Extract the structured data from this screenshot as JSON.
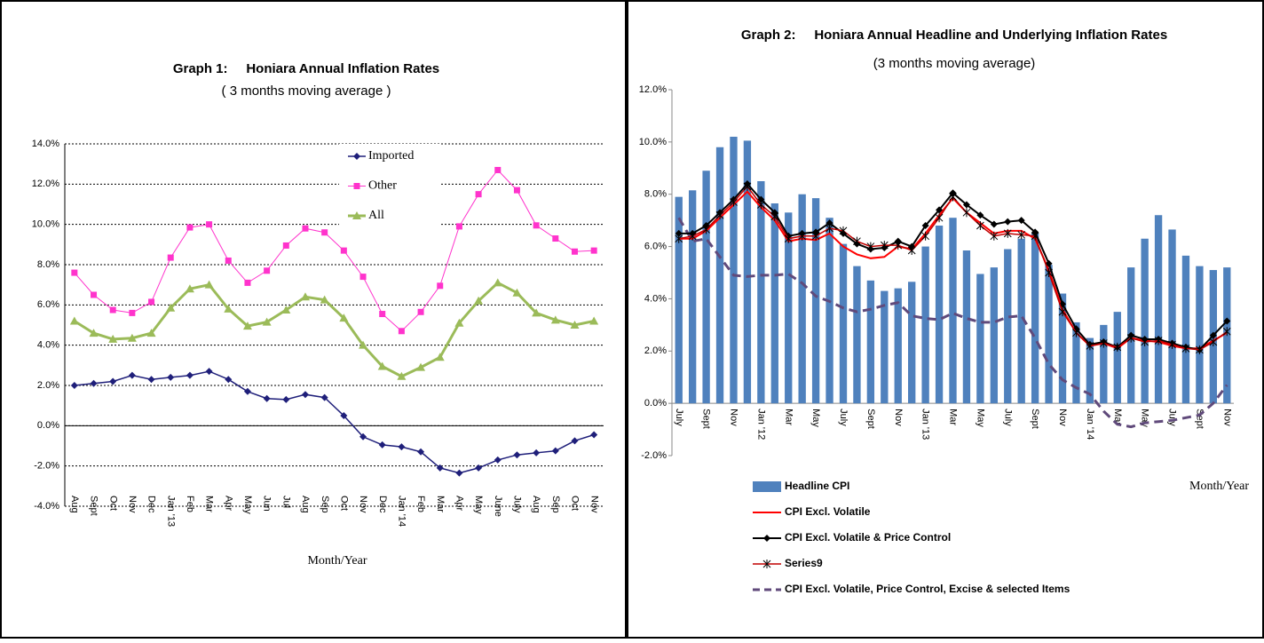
{
  "chart_data": [
    {
      "type": "line",
      "title": "Graph 1:     Honiara Annual Inflation Rates",
      "subtitle": "( 3 months moving average )",
      "x_label": "Month/Year",
      "legend": "top",
      "grid": true,
      "categories": [
        "Aug",
        "Sept",
        "Oct",
        "Nov",
        "Dec",
        "Jan '13",
        "Feb",
        "Mar",
        "Apr",
        "May",
        "Jun",
        "Jul",
        "Aug",
        "Sep",
        "Oct",
        "Nov",
        "Dec",
        "Jan '14",
        "Feb",
        "Mar",
        "Apr",
        "May",
        "June",
        "July",
        "Aug",
        "Sep",
        "Oct",
        "Nov"
      ],
      "ylim": [
        -4,
        14
      ],
      "yticks": [
        {
          "value": -4,
          "label": "-4.0%"
        },
        {
          "value": -2,
          "label": "-2.0%"
        },
        {
          "value": 0,
          "label": "0.0%"
        },
        {
          "value": 2,
          "label": "2.0%"
        },
        {
          "value": 4,
          "label": "4.0%"
        },
        {
          "value": 6,
          "label": "6.0%"
        },
        {
          "value": 8,
          "label": "8.0%"
        },
        {
          "value": 10,
          "label": "10.0%"
        },
        {
          "value": 12,
          "label": "12.0%"
        },
        {
          "value": 14,
          "label": "14.0%"
        }
      ],
      "series": [
        {
          "name": "Imported",
          "color": "#1f1f7a",
          "marker": "diamond",
          "width": 1.5,
          "values": [
            2.0,
            2.1,
            2.2,
            2.5,
            2.3,
            2.4,
            2.5,
            2.7,
            2.3,
            1.7,
            1.35,
            1.3,
            1.55,
            1.4,
            0.5,
            -0.55,
            -0.95,
            -1.05,
            -1.3,
            -2.1,
            -2.35,
            -2.1,
            -1.7,
            -1.45,
            -1.35,
            -1.25,
            -0.75,
            -0.45
          ]
        },
        {
          "name": "Other",
          "color": "#ff33cc",
          "marker": "square",
          "width": 1,
          "values": [
            7.6,
            6.5,
            5.75,
            5.6,
            6.15,
            8.35,
            9.85,
            10.0,
            8.2,
            7.1,
            7.7,
            8.95,
            9.8,
            9.6,
            8.7,
            7.4,
            5.55,
            4.7,
            5.65,
            6.95,
            9.9,
            11.5,
            12.7,
            11.7,
            9.95,
            9.3,
            8.65,
            8.7
          ]
        },
        {
          "name": "All",
          "color": "#9bbb59",
          "marker": "triangle",
          "width": 3,
          "values": [
            5.2,
            4.6,
            4.3,
            4.35,
            4.6,
            5.85,
            6.8,
            7.0,
            5.8,
            4.95,
            5.15,
            5.75,
            6.4,
            6.25,
            5.35,
            4.0,
            2.95,
            2.45,
            2.9,
            3.4,
            5.1,
            6.2,
            7.1,
            6.6,
            5.6,
            5.25,
            5.0,
            5.2
          ]
        }
      ]
    },
    {
      "type": "bar",
      "title": "Graph 2:     Honiara Annual Headline and Underlying Inflation Rates",
      "subtitle": "(3 months moving average)",
      "x_label": "Month/Year",
      "legend": "bottom",
      "grid": false,
      "categories": [
        "July",
        null,
        "Sept",
        null,
        "Nov",
        null,
        "Jan '12",
        null,
        "Mar",
        null,
        "May",
        null,
        "July",
        null,
        "Sept",
        null,
        "Nov",
        null,
        "Jan '13",
        null,
        "Mar",
        null,
        "May",
        null,
        "July",
        null,
        "Sept",
        null,
        "Nov",
        null,
        "Jan '14",
        null,
        "Mar",
        null,
        "May",
        null,
        "July",
        null,
        "Sept",
        null,
        "Nov"
      ],
      "ylim": [
        -2,
        12
      ],
      "yticks": [
        {
          "value": -2,
          "label": "-2.0%"
        },
        {
          "value": 0,
          "label": "0.0%"
        },
        {
          "value": 2,
          "label": "2.0%"
        },
        {
          "value": 4,
          "label": "4.0%"
        },
        {
          "value": 6,
          "label": "6.0%"
        },
        {
          "value": 8,
          "label": "8.0%"
        },
        {
          "value": 10,
          "label": "10.0%"
        },
        {
          "value": 12,
          "label": "12.0%"
        }
      ],
      "series": [
        {
          "name": "Headline CPI",
          "type": "bar",
          "color": "#4f81bd",
          "values": [
            7.9,
            8.15,
            8.9,
            9.8,
            10.2,
            10.05,
            8.5,
            7.65,
            7.3,
            8.0,
            7.85,
            7.1,
            6.1,
            5.25,
            4.7,
            4.3,
            4.4,
            4.65,
            6.0,
            6.8,
            7.1,
            5.85,
            4.95,
            5.2,
            5.9,
            6.3,
            6.5,
            5.3,
            4.2,
            3.1,
            2.5,
            3.0,
            3.5,
            5.2,
            6.3,
            7.2,
            6.65,
            5.65,
            5.25,
            5.1,
            5.2
          ]
        },
        {
          "name": "CPI Excl. Volatile",
          "type": "line",
          "color": "#ff0000",
          "marker": "none",
          "width": 2,
          "values": [
            6.3,
            6.3,
            6.6,
            7.1,
            7.6,
            8.1,
            7.5,
            7.0,
            6.2,
            6.3,
            6.25,
            6.5,
            6.0,
            5.7,
            5.55,
            5.6,
            6.0,
            5.9,
            6.5,
            7.2,
            7.85,
            7.3,
            6.9,
            6.5,
            6.6,
            6.6,
            6.3,
            5.1,
            3.6,
            2.7,
            2.2,
            2.3,
            2.1,
            2.5,
            2.4,
            2.35,
            2.2,
            2.1,
            2.1,
            2.4,
            2.7
          ]
        },
        {
          "name": "CPI Excl. Volatile & Price Control",
          "type": "line",
          "color": "#000000",
          "marker": "diamond",
          "width": 2,
          "values": [
            6.5,
            6.5,
            6.8,
            7.3,
            7.8,
            8.4,
            7.8,
            7.3,
            6.4,
            6.5,
            6.55,
            6.9,
            6.5,
            6.1,
            5.9,
            5.95,
            6.2,
            6.0,
            6.8,
            7.4,
            8.05,
            7.6,
            7.2,
            6.85,
            6.95,
            7.0,
            6.55,
            5.35,
            3.8,
            2.85,
            2.25,
            2.35,
            2.15,
            2.6,
            2.45,
            2.45,
            2.3,
            2.15,
            2.05,
            2.6,
            3.15
          ]
        },
        {
          "name": "Series9",
          "type": "line",
          "color": "#c00000",
          "marker": "star",
          "width": 1.5,
          "values": [
            6.3,
            6.4,
            6.65,
            7.2,
            7.7,
            8.3,
            7.6,
            7.15,
            6.3,
            6.4,
            6.4,
            6.7,
            6.6,
            6.2,
            6.0,
            6.05,
            6.05,
            5.85,
            6.4,
            7.1,
            7.9,
            7.3,
            6.8,
            6.4,
            6.5,
            6.45,
            6.4,
            5.0,
            3.5,
            2.7,
            2.2,
            2.3,
            2.15,
            2.5,
            2.35,
            2.4,
            2.25,
            2.1,
            2.05,
            2.35,
            2.75
          ]
        },
        {
          "name": "CPI Excl. Volatile, Price Control, Excise & selected Items",
          "type": "line",
          "color": "#604a7b",
          "marker": "none",
          "width": 3,
          "dash": true,
          "values": [
            7.1,
            6.2,
            6.3,
            5.6,
            4.9,
            4.85,
            4.9,
            4.9,
            4.95,
            4.6,
            4.1,
            3.9,
            3.65,
            3.5,
            3.6,
            3.75,
            3.85,
            3.35,
            3.25,
            3.2,
            3.45,
            3.25,
            3.1,
            3.1,
            3.3,
            3.35,
            2.5,
            1.5,
            0.9,
            0.6,
            0.35,
            -0.3,
            -0.8,
            -0.9,
            -0.75,
            -0.7,
            -0.65,
            -0.55,
            -0.45,
            0.0,
            0.7
          ]
        }
      ]
    }
  ]
}
